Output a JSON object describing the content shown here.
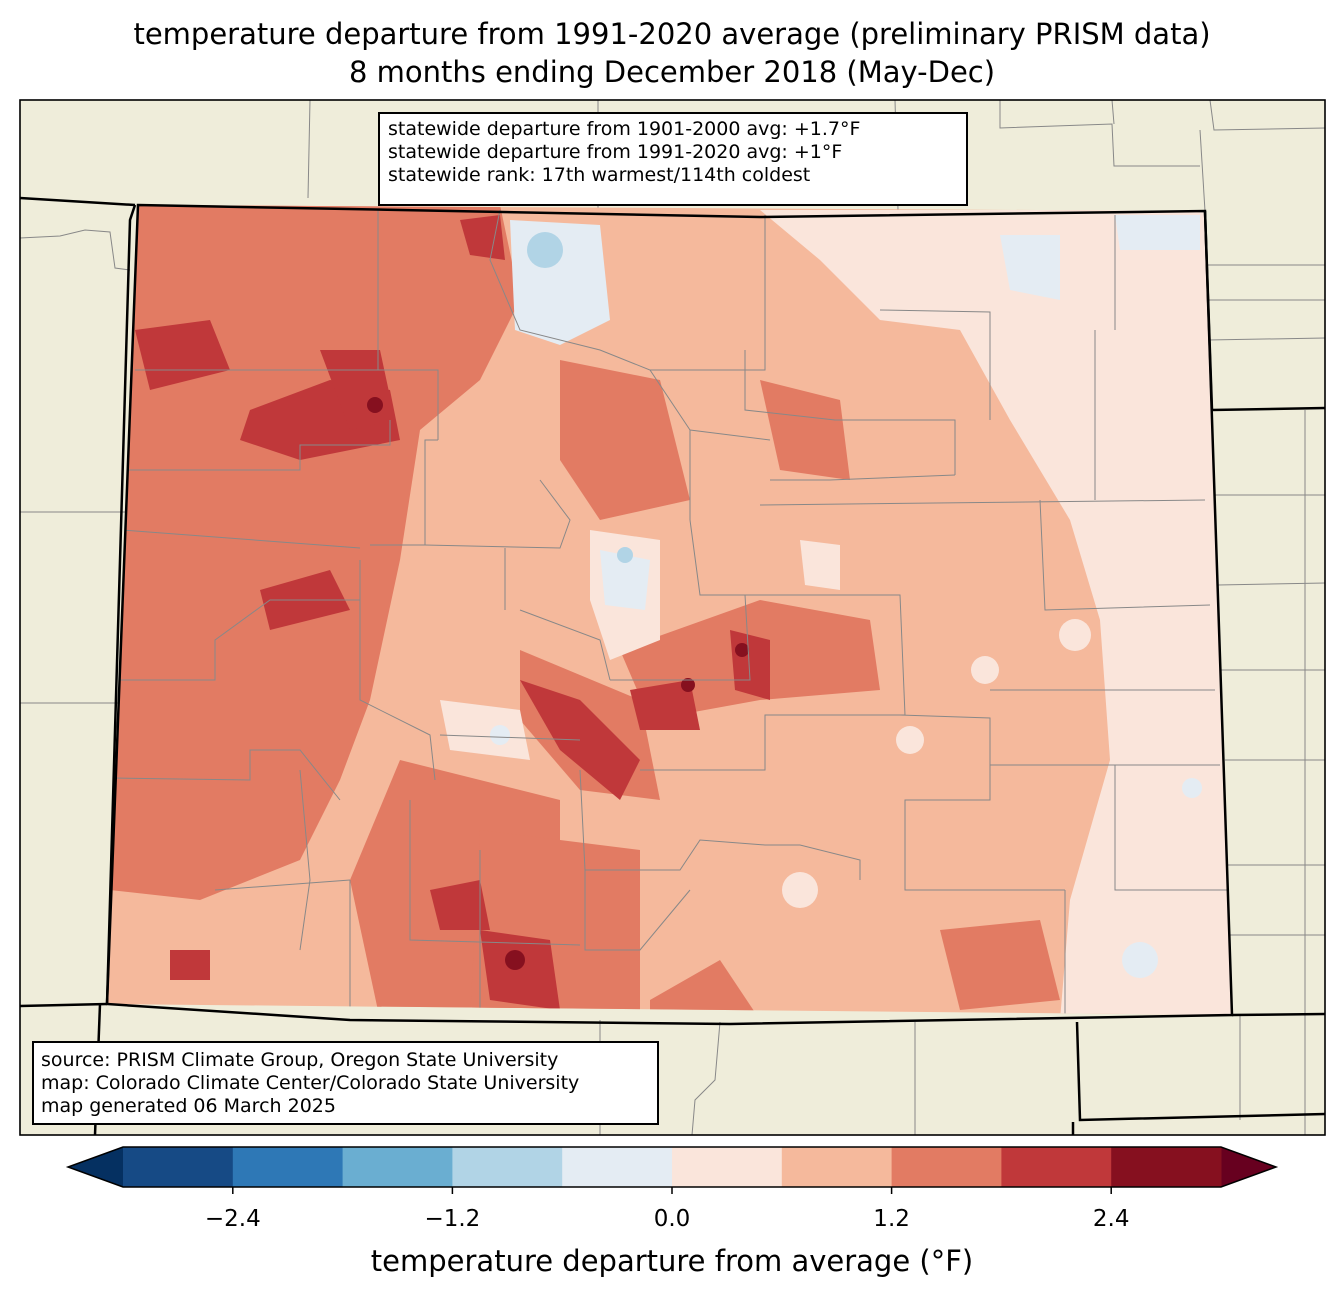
{
  "title": {
    "line1": "temperature departure from 1991-2020 average (preliminary PRISM data)",
    "line2": "8 months ending December 2018 (May-Dec)"
  },
  "stats": {
    "line1": "statewide departure from 1901-2000 avg: +1.7°F",
    "line2": "statewide departure from 1991-2020 avg: +1°F",
    "line3": "statewide rank: 17th warmest/114th coldest"
  },
  "source": {
    "line1": "source: PRISM Climate Group, Oregon State University",
    "line2": "map: Colorado Climate Center/Colorado State University",
    "line3": "map generated 06 March 2025"
  },
  "colorbar": {
    "label": "temperature departure from average (°F)",
    "ticks": [
      "−2.4",
      "−1.2",
      "0.0",
      "1.2",
      "2.4"
    ],
    "tick_values": [
      -2.4,
      -1.2,
      0.0,
      1.2,
      2.4
    ],
    "bounds": [
      -3.0,
      -2.4,
      -1.8,
      -1.2,
      -0.6,
      0.0,
      0.6,
      1.2,
      1.8,
      2.4,
      3.0
    ],
    "colors": [
      "#164a85",
      "#2e78b6",
      "#6aaed1",
      "#b1d4e6",
      "#e4ecf3",
      "#fae5db",
      "#f5b99c",
      "#e27b63",
      "#c0383a",
      "#86101f"
    ],
    "under_color": "#053061",
    "over_color": "#67001f"
  },
  "colors": {
    "land": "#efedda",
    "state_border": "#000000",
    "county_border": "#888888"
  }
}
